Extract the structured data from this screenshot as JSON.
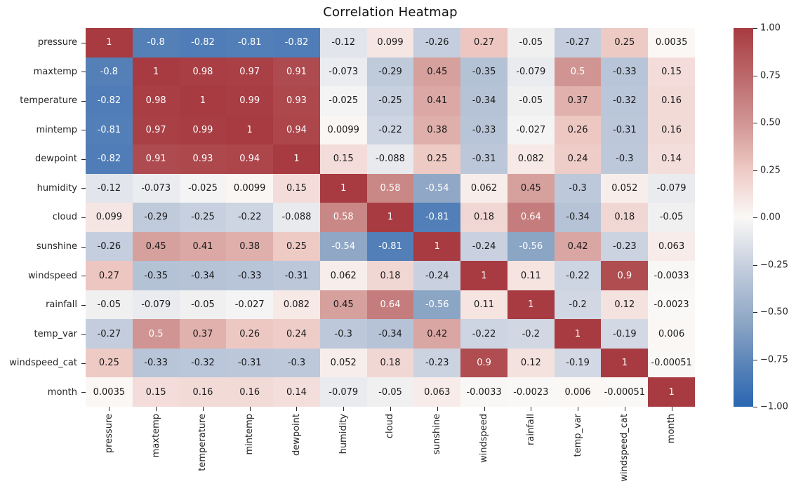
{
  "title": "Correlation Heatmap",
  "chart_data": {
    "type": "heatmap",
    "title": "Correlation Heatmap",
    "x_labels": [
      "pressure",
      "maxtemp",
      "temperature",
      "mintemp",
      "dewpoint",
      "humidity",
      "cloud",
      "sunshine",
      "windspeed",
      "rainfall",
      "temp_var",
      "windspeed_cat",
      "month"
    ],
    "y_labels": [
      "pressure",
      "maxtemp",
      "temperature",
      "mintemp",
      "dewpoint",
      "humidity",
      "cloud",
      "sunshine",
      "windspeed",
      "rainfall",
      "temp_var",
      "windspeed_cat",
      "month"
    ],
    "matrix_display": [
      [
        "1",
        "-0.8",
        "-0.82",
        "-0.81",
        "-0.82",
        "-0.12",
        "0.099",
        "-0.26",
        "0.27",
        "-0.05",
        "-0.27",
        "0.25",
        "0.0035"
      ],
      [
        "-0.8",
        "1",
        "0.98",
        "0.97",
        "0.91",
        "-0.073",
        "-0.29",
        "0.45",
        "-0.35",
        "-0.079",
        "0.5",
        "-0.33",
        "0.15"
      ],
      [
        "-0.82",
        "0.98",
        "1",
        "0.99",
        "0.93",
        "-0.025",
        "-0.25",
        "0.41",
        "-0.34",
        "-0.05",
        "0.37",
        "-0.32",
        "0.16"
      ],
      [
        "-0.81",
        "0.97",
        "0.99",
        "1",
        "0.94",
        "0.0099",
        "-0.22",
        "0.38",
        "-0.33",
        "-0.027",
        "0.26",
        "-0.31",
        "0.16"
      ],
      [
        "-0.82",
        "0.91",
        "0.93",
        "0.94",
        "1",
        "0.15",
        "-0.088",
        "0.25",
        "-0.31",
        "0.082",
        "0.24",
        "-0.3",
        "0.14"
      ],
      [
        "-0.12",
        "-0.073",
        "-0.025",
        "0.0099",
        "0.15",
        "1",
        "0.58",
        "-0.54",
        "0.062",
        "0.45",
        "-0.3",
        "0.052",
        "-0.079"
      ],
      [
        "0.099",
        "-0.29",
        "-0.25",
        "-0.22",
        "-0.088",
        "0.58",
        "1",
        "-0.81",
        "0.18",
        "0.64",
        "-0.34",
        "0.18",
        "-0.05"
      ],
      [
        "-0.26",
        "0.45",
        "0.41",
        "0.38",
        "0.25",
        "-0.54",
        "-0.81",
        "1",
        "-0.24",
        "-0.56",
        "0.42",
        "-0.23",
        "0.063"
      ],
      [
        "0.27",
        "-0.35",
        "-0.34",
        "-0.33",
        "-0.31",
        "0.062",
        "0.18",
        "-0.24",
        "1",
        "0.11",
        "-0.22",
        "0.9",
        "-0.0033"
      ],
      [
        "-0.05",
        "-0.079",
        "-0.05",
        "-0.027",
        "0.082",
        "0.45",
        "0.64",
        "-0.56",
        "0.11",
        "1",
        "-0.2",
        "0.12",
        "-0.0023"
      ],
      [
        "-0.27",
        "0.5",
        "0.37",
        "0.26",
        "0.24",
        "-0.3",
        "-0.34",
        "0.42",
        "-0.22",
        "-0.2",
        "1",
        "-0.19",
        "0.006"
      ],
      [
        "0.25",
        "-0.33",
        "-0.32",
        "-0.31",
        "-0.3",
        "0.052",
        "0.18",
        "-0.23",
        "0.9",
        "0.12",
        "-0.19",
        "1",
        "-0.00051"
      ],
      [
        "0.0035",
        "0.15",
        "0.16",
        "0.16",
        "0.14",
        "-0.079",
        "-0.05",
        "0.063",
        "-0.0033",
        "-0.0023",
        "0.006",
        "-0.00051",
        "1"
      ]
    ],
    "value_range": [
      -1,
      1
    ],
    "colorbar_ticks": [
      "1.00",
      "0.75",
      "0.50",
      "0.25",
      "0.00",
      "−0.25",
      "−0.50",
      "−0.75",
      "−1.00"
    ],
    "colormap_name": "vlag-like diverging blue-white-red",
    "colormap_anchors": [
      {
        "v": -1.0,
        "rgb": [
          42,
          102,
          178
        ]
      },
      {
        "v": -0.8,
        "rgb": [
          84,
          128,
          183
        ]
      },
      {
        "v": -0.54,
        "rgb": [
          144,
          168,
          198
        ]
      },
      {
        "v": -0.26,
        "rgb": [
          197,
          206,
          222
        ]
      },
      {
        "v": 0.0,
        "rgb": [
          250,
          248,
          246
        ]
      },
      {
        "v": 0.27,
        "rgb": [
          237,
          198,
          193
        ]
      },
      {
        "v": 0.5,
        "rgb": [
          208,
          149,
          147
        ]
      },
      {
        "v": 1.0,
        "rgb": [
          167,
          59,
          65
        ]
      }
    ],
    "colors": {
      "negative_end": "#2a66b2",
      "midpoint": "#faf8f6",
      "positive_end": "#a73b41",
      "text_dark": "#1a1a1a",
      "text_light": "#ffffff"
    },
    "annot_light_text_threshold": 0.5,
    "legend_position": "right-colorbar",
    "grid": false
  }
}
